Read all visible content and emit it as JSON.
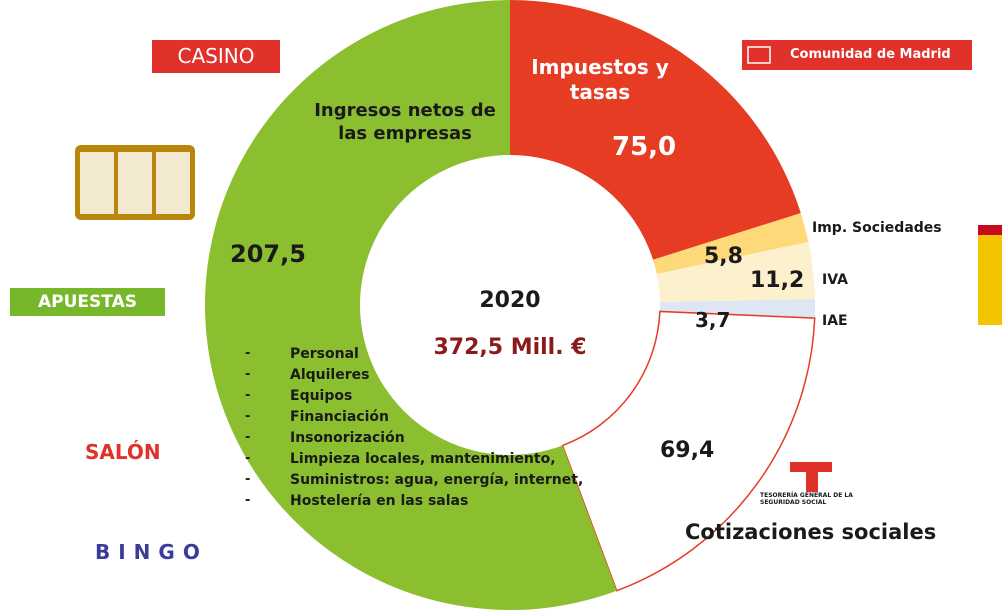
{
  "chart_data": {
    "type": "donut",
    "categories": [
      "Ingresos netos de las empresas",
      "Impuestos y tasas",
      "Imp. Sociedades",
      "IVA",
      "IAE",
      "Cotizaciones sociales"
    ],
    "values": [
      207.5,
      75.0,
      5.8,
      11.2,
      3.7,
      69.4
    ],
    "value_labels": [
      "207,5",
      "75,0",
      "5,8",
      "11,2",
      "3,7",
      "69,4"
    ],
    "colors": [
      "#8cbf2f",
      "#e53c23",
      "#fdd97a",
      "#fdf0cc",
      "#dde6f2",
      "#ffffff"
    ],
    "center_title": "2020",
    "center_subtitle": "372,5 Mill. €",
    "breakdown": [
      "Personal",
      "Alquileres",
      "Equipos",
      "Financiación",
      "Insonorización",
      "Limpieza locales, mantenimiento,",
      "Suministros: agua, energía, internet,",
      "Hostelería en las salas"
    ]
  },
  "logos": {
    "casino": "CASINO",
    "madrid": "Comunidad de Madrid",
    "apuestas": "APUESTAS",
    "salon": "SALÓN",
    "bingo": "BINGO",
    "tesoreria": "TESORERÍA GENERAL DE LA SEGURIDAD SOCIAL"
  }
}
